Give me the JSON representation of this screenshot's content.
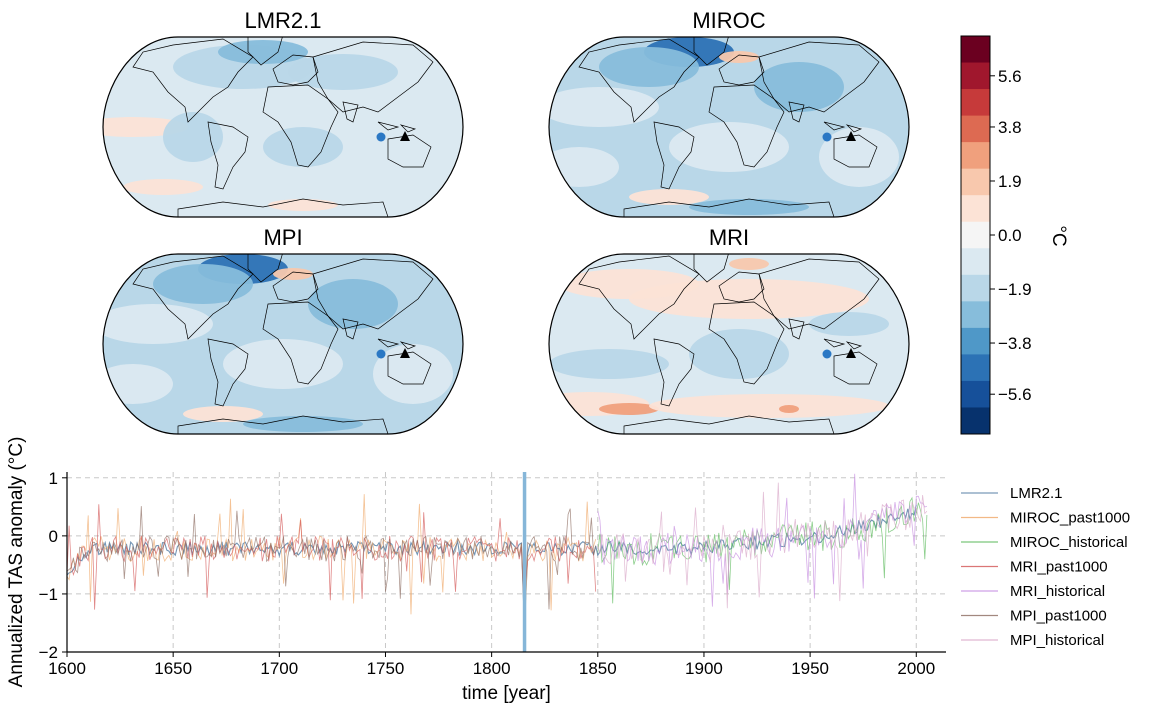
{
  "chart_data": [
    {
      "type": "map",
      "panels": [
        {
          "title": "LMR2.1",
          "tone": "weak-cool"
        },
        {
          "title": "MIROC",
          "tone": "cool"
        },
        {
          "title": "MPI",
          "tone": "cool"
        },
        {
          "title": "MRI",
          "tone": "warm-mixed"
        }
      ],
      "colorbar": {
        "unit": "°C",
        "tick_labels": [
          "5.6",
          "3.8",
          "1.9",
          "0.0",
          "−1.9",
          "−3.8",
          "−5.6"
        ],
        "tick_values": [
          5.6,
          3.8,
          1.9,
          0.0,
          -1.9,
          -3.8,
          -5.6
        ],
        "range": [
          -7.0,
          7.0
        ],
        "colors": [
          "#6b0020",
          "#a0172d",
          "#c63a3a",
          "#dd6a52",
          "#f0a07d",
          "#f8c8ad",
          "#fce3d6",
          "#f5f5f5",
          "#dbe9f1",
          "#b9d7e8",
          "#87bddb",
          "#4f98c8",
          "#2c72b5",
          "#16509a",
          "#07326d"
        ]
      },
      "markers": [
        {
          "shape": "circle",
          "color": "#2b78c4"
        },
        {
          "shape": "triangle",
          "color": "#000000"
        }
      ]
    },
    {
      "type": "line",
      "xlabel": "time [year]",
      "ylabel": "Annualized TAS anomaly (°C)",
      "xlim": [
        1600,
        2014
      ],
      "ylim": [
        -2,
        1.1
      ],
      "xticks": [
        1600,
        1650,
        1700,
        1750,
        1800,
        1850,
        1900,
        1950,
        2000
      ],
      "yticks": [
        1,
        0,
        -1,
        -2
      ],
      "ytick_labels": [
        "1",
        "0",
        "−1",
        "−2"
      ],
      "grid": true,
      "vertical_line": {
        "x": 1815.5,
        "color": "#86b6d8"
      },
      "legend_position": "right",
      "series": [
        {
          "name": "LMR2.1",
          "color": "#5a82a8",
          "x_range": [
            1600,
            2000
          ]
        },
        {
          "name": "MIROC_past1000",
          "color": "#f0a868",
          "x_range": [
            1600,
            1849
          ]
        },
        {
          "name": "MIROC_historical",
          "color": "#5cbb5c",
          "x_range": [
            1850,
            2005
          ]
        },
        {
          "name": "MRI_past1000",
          "color": "#d35555",
          "x_range": [
            1600,
            1849
          ]
        },
        {
          "name": "MRI_historical",
          "color": "#c48ae0",
          "x_range": [
            1850,
            2005
          ]
        },
        {
          "name": "MPI_past1000",
          "color": "#8c6b60",
          "x_range": [
            1600,
            1849
          ]
        },
        {
          "name": "MPI_historical",
          "color": "#d9a7c7",
          "x_range": [
            1850,
            2005
          ]
        }
      ]
    }
  ]
}
